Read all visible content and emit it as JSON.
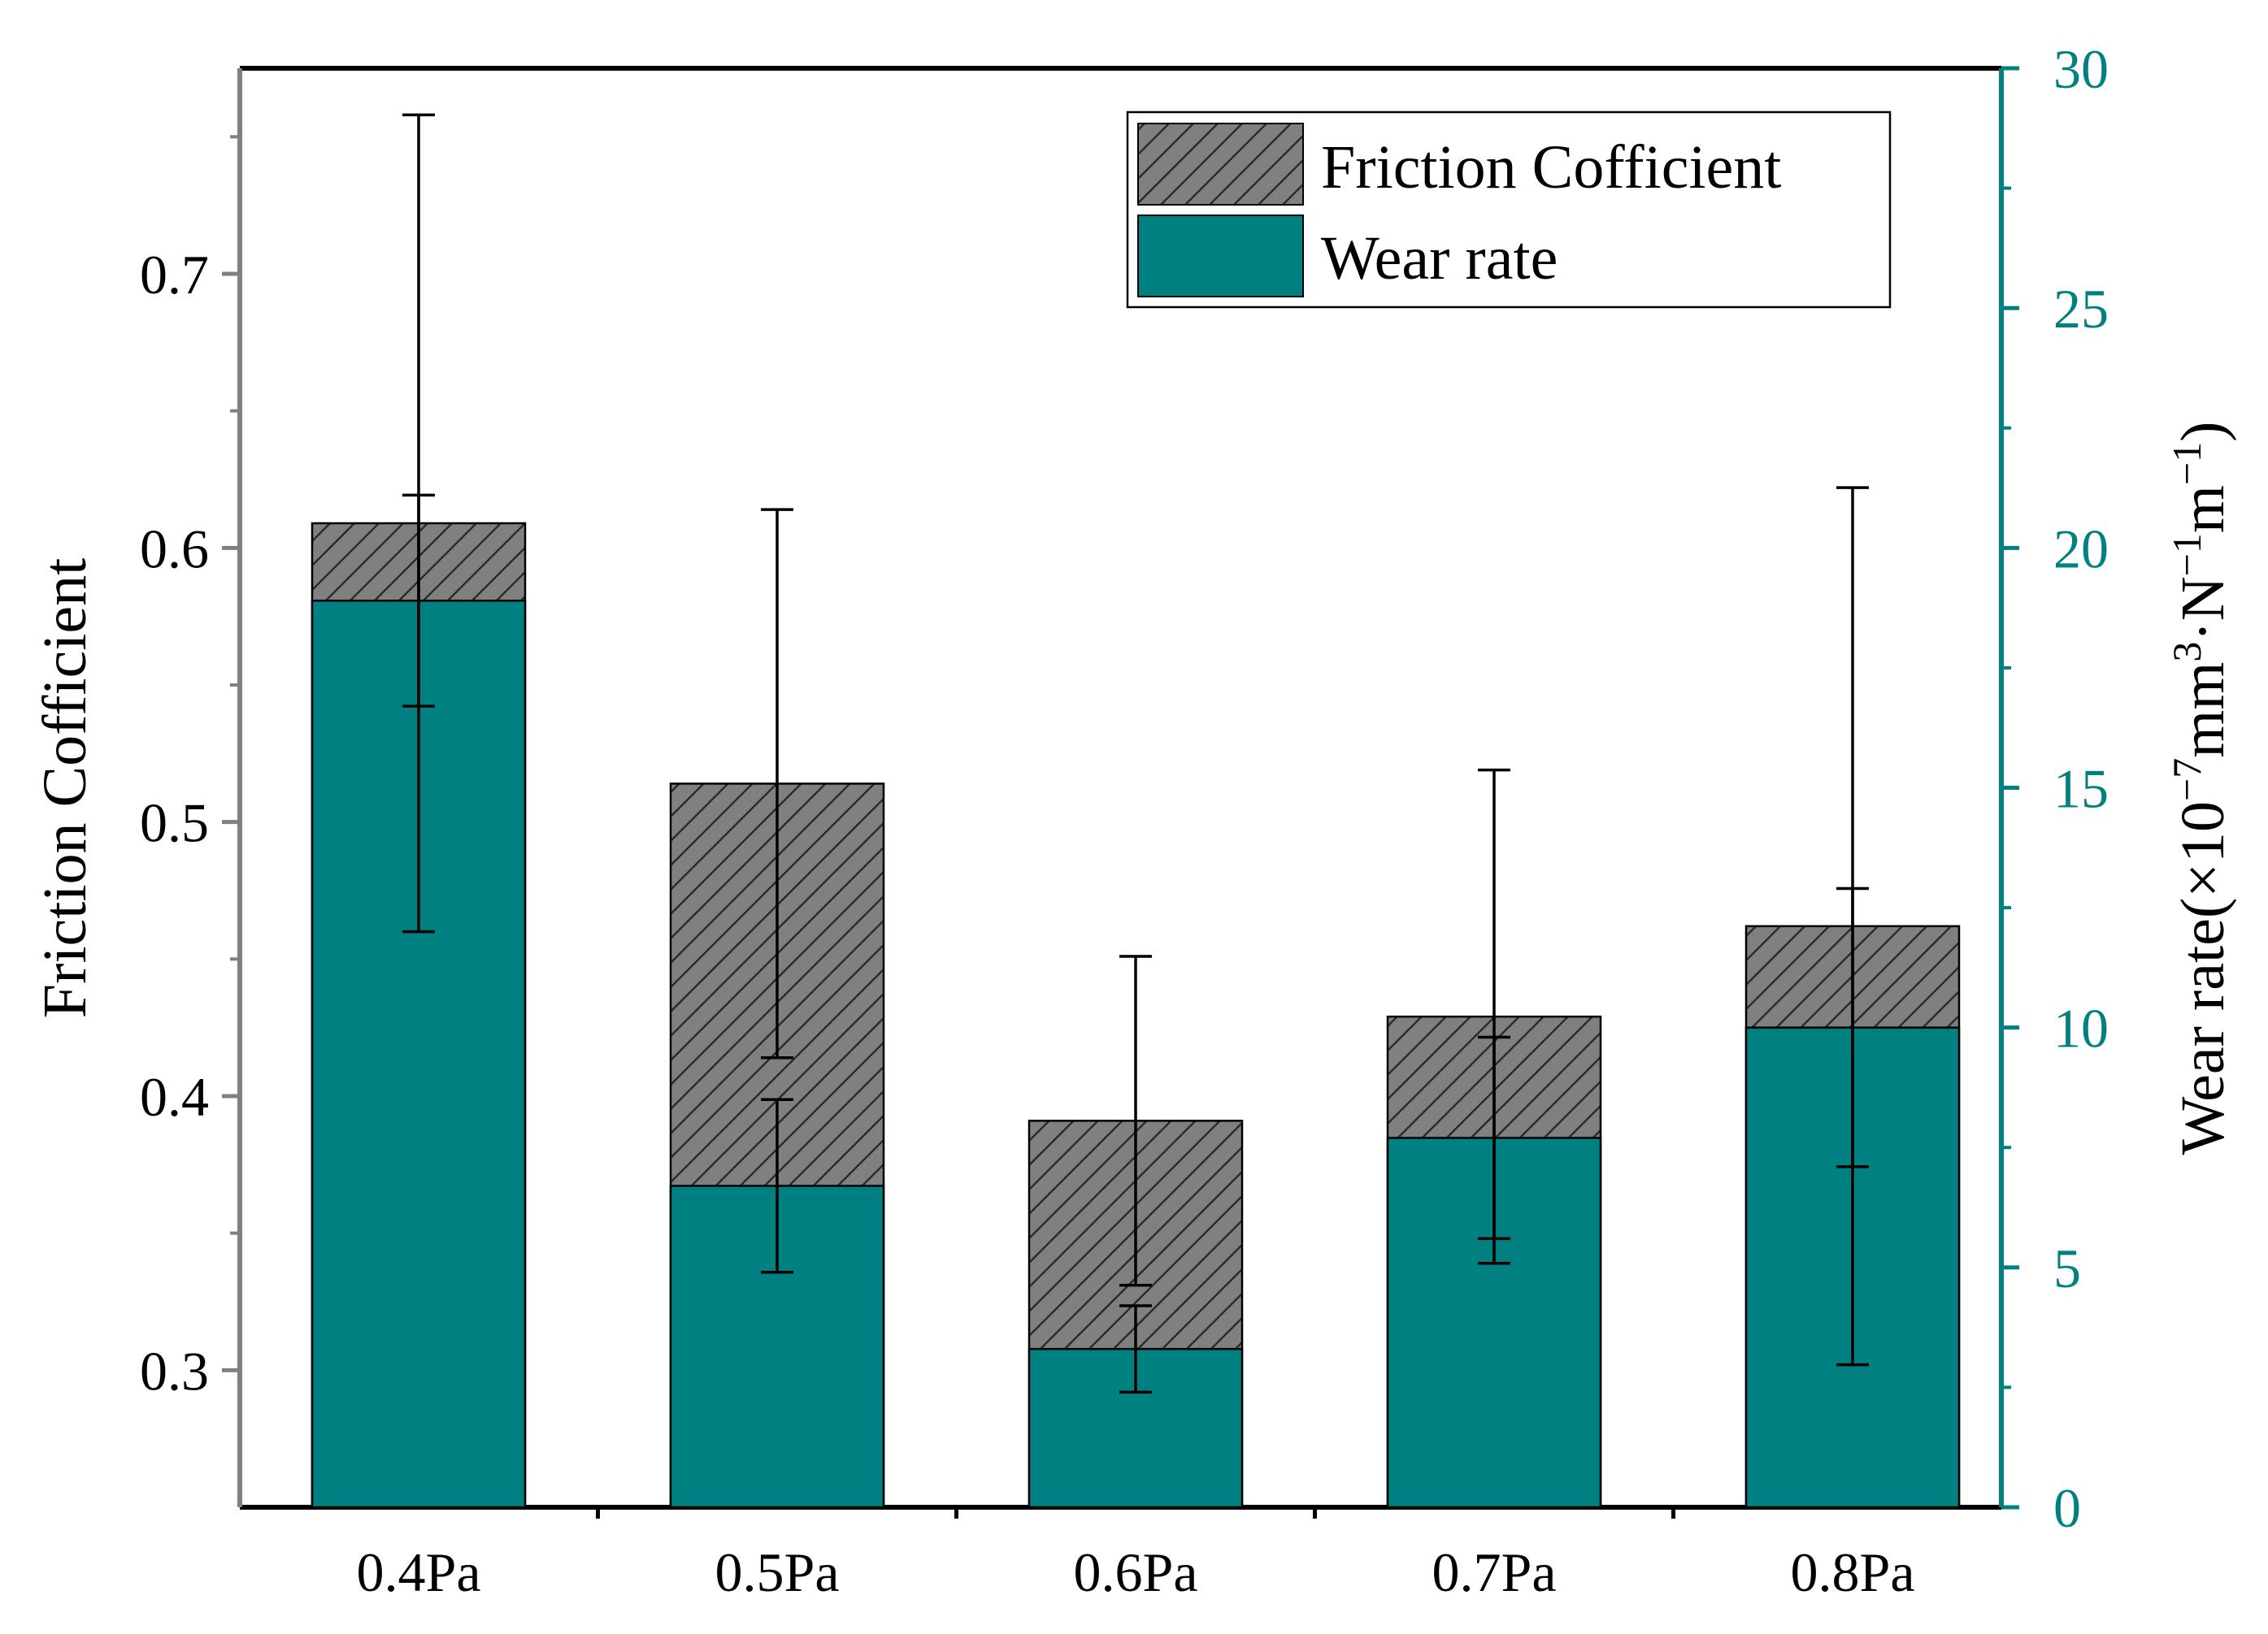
{
  "chart_data": {
    "type": "bar",
    "categories": [
      "0.4Pa",
      "0.5Pa",
      "0.6Pa",
      "0.7Pa",
      "0.8Pa"
    ],
    "series": [
      {
        "name": "Friction Cofficient",
        "axis": "left",
        "values": [
          0.609,
          0.514,
          0.391,
          0.429,
          0.462
        ],
        "errors": [
          0.149,
          0.1,
          0.06,
          0.09,
          0.16
        ],
        "color": "#808080",
        "pattern": "hatch"
      },
      {
        "name": "Wear rate",
        "axis": "right",
        "values": [
          18.9,
          6.7,
          3.3,
          7.7,
          10.0
        ],
        "errors": [
          2.2,
          1.8,
          0.9,
          2.1,
          2.9
        ],
        "color": "#008080"
      }
    ],
    "left_axis": {
      "label": "Friction Cofficient",
      "ylim": [
        0.25,
        0.775
      ],
      "ticks": [
        0.3,
        0.4,
        0.5,
        0.6,
        0.7
      ],
      "tick_labels": [
        "0.3",
        "0.4",
        "0.5",
        "0.6",
        "0.7"
      ],
      "color": "#808080"
    },
    "right_axis": {
      "label_prefix": "Wear rate(×10",
      "label_exp1": "−7",
      "label_mid1": "mm",
      "label_exp2": "3",
      "label_mid2": "·N",
      "label_exp3": "−1",
      "label_mid3": "m",
      "label_exp4": "−1",
      "label_suffix": ")",
      "ylim": [
        0,
        30
      ],
      "ticks": [
        0,
        5,
        10,
        15,
        20,
        25,
        30
      ],
      "tick_labels": [
        "0",
        "5",
        "10",
        "15",
        "20",
        "25",
        "30"
      ],
      "color": "#008080"
    },
    "legend_position": "top-right",
    "grid": false
  }
}
